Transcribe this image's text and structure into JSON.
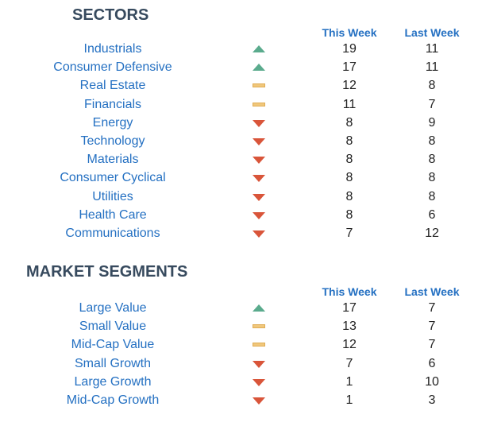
{
  "sectors": {
    "title": "SECTORS",
    "col_this_week": "This Week",
    "col_last_week": "Last Week",
    "rows": [
      {
        "name": "Industrials",
        "trend": "up",
        "this_week": "19",
        "last_week": "11"
      },
      {
        "name": "Consumer Defensive",
        "trend": "up",
        "this_week": "17",
        "last_week": "11"
      },
      {
        "name": "Real Estate",
        "trend": "flat",
        "this_week": "12",
        "last_week": "8"
      },
      {
        "name": "Financials",
        "trend": "flat",
        "this_week": "11",
        "last_week": "7"
      },
      {
        "name": "Energy",
        "trend": "down",
        "this_week": "8",
        "last_week": "9"
      },
      {
        "name": "Technology",
        "trend": "down",
        "this_week": "8",
        "last_week": "8"
      },
      {
        "name": "Materials",
        "trend": "down",
        "this_week": "8",
        "last_week": "8"
      },
      {
        "name": "Consumer Cyclical",
        "trend": "down",
        "this_week": "8",
        "last_week": "8"
      },
      {
        "name": "Utilities",
        "trend": "down",
        "this_week": "8",
        "last_week": "8"
      },
      {
        "name": "Health Care",
        "trend": "down",
        "this_week": "8",
        "last_week": "6"
      },
      {
        "name": "Communications",
        "trend": "down",
        "this_week": "7",
        "last_week": "12"
      }
    ]
  },
  "segments": {
    "title": "MARKET SEGMENTS",
    "col_this_week": "This Week",
    "col_last_week": "Last Week",
    "rows": [
      {
        "name": "Large Value",
        "trend": "up",
        "this_week": "17",
        "last_week": "7"
      },
      {
        "name": "Small Value",
        "trend": "flat",
        "this_week": "13",
        "last_week": "7"
      },
      {
        "name": "Mid-Cap Value",
        "trend": "flat",
        "this_week": "12",
        "last_week": "7"
      },
      {
        "name": "Small Growth",
        "trend": "down",
        "this_week": "7",
        "last_week": "6"
      },
      {
        "name": "Large Growth",
        "trend": "down",
        "this_week": "1",
        "last_week": "10"
      },
      {
        "name": "Mid-Cap Growth",
        "trend": "down",
        "this_week": "1",
        "last_week": "3"
      }
    ]
  },
  "colors": {
    "title": "#374a5e",
    "label_blue": "#2470c2",
    "up": "#5aab8d",
    "down": "#d9553a",
    "flat": "#f0c77b"
  },
  "icons": {
    "up": "triangle-up-icon",
    "down": "triangle-down-icon",
    "flat": "dash-icon"
  }
}
